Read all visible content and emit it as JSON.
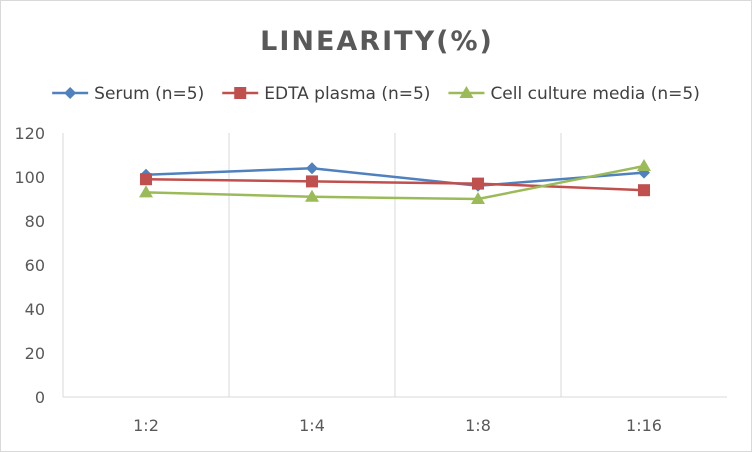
{
  "chart_data": {
    "type": "line",
    "title": "LINEARITY(%)",
    "xlabel": "",
    "ylabel": "",
    "categories": [
      "1:2",
      "1:4",
      "1:8",
      "1:16"
    ],
    "ylim": [
      0,
      120
    ],
    "yticks": [
      "0",
      "20",
      "40",
      "60",
      "80",
      "100",
      "120"
    ],
    "grid": "vertical",
    "legend_position": "top",
    "series": [
      {
        "name": "Serum (n=5)",
        "values": [
          101,
          104,
          96,
          102
        ],
        "color": "#4f81bd",
        "marker": "diamond"
      },
      {
        "name": "EDTA plasma (n=5)",
        "values": [
          99,
          98,
          97,
          94
        ],
        "color": "#c0504d",
        "marker": "square"
      },
      {
        "name": "Cell culture media (n=5)",
        "values": [
          93,
          91,
          90,
          105
        ],
        "color": "#9bbb59",
        "marker": "triangle"
      }
    ]
  }
}
